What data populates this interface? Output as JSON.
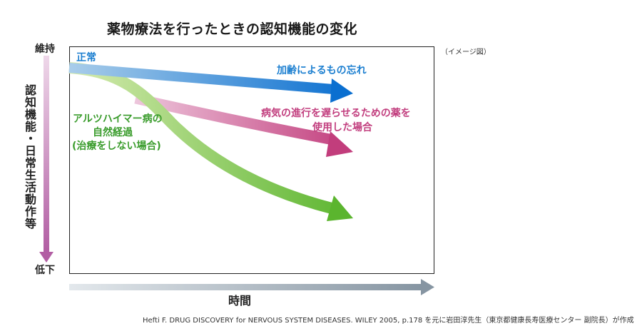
{
  "title": "薬物療法を行ったときの認知機能の変化",
  "note": "（イメージ図）",
  "y_axis": {
    "label": "認知機能・日常生活動作等",
    "top": "維持",
    "bottom": "低下"
  },
  "x_axis": {
    "label": "時間"
  },
  "labels": {
    "normal": "正常",
    "aging": "加齢によるもの忘れ",
    "drug_line1": "病気の進行を遅らせるための薬を",
    "drug_line2": "使用した場合",
    "ad_line1": "アルツハイマー病の",
    "ad_line2": "自然経過",
    "ad_line3": "(治療をしない場合)"
  },
  "source": "Hefti F. DRUG DISCOVERY for NERVOUS SYSTEM DISEASES. WILEY 2005, p.178 を元に岩田淳先生（東京都健康長寿医療センター 副院長）が作成",
  "colors": {
    "aging": "#1a7fd4",
    "drug": "#c0447e",
    "alzheimer": "#6abf3a",
    "axis_y": "#b05aa0",
    "axis_x": "#8a9aa8"
  }
}
